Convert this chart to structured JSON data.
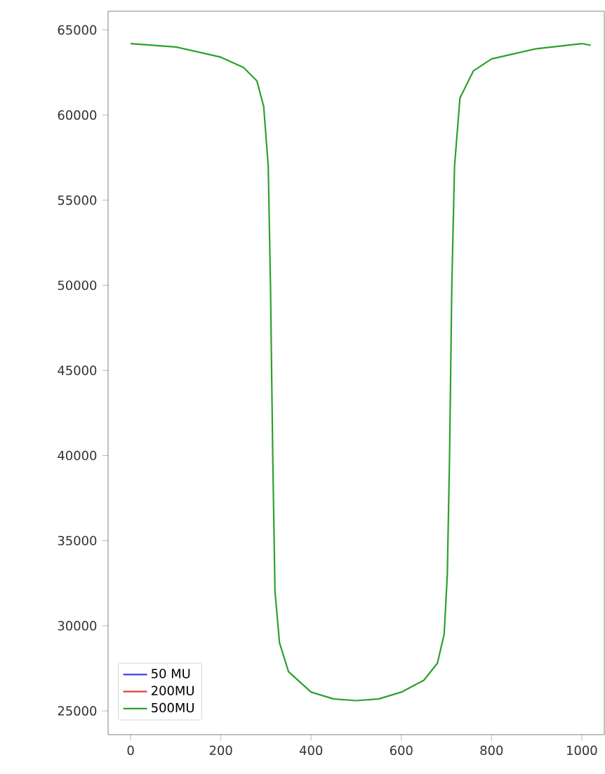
{
  "chart_data": {
    "type": "line",
    "x": [
      0,
      100,
      200,
      250,
      280,
      295,
      305,
      310,
      315,
      320,
      330,
      350,
      400,
      450,
      500,
      550,
      600,
      650,
      680,
      695,
      702,
      707,
      712,
      718,
      730,
      760,
      800,
      900,
      1000,
      1020
    ],
    "series": [
      {
        "name": "50 MU",
        "color": "#4040e0",
        "values": [
          null,
          null,
          null,
          null,
          null,
          null,
          null,
          null,
          null,
          null,
          null,
          null,
          null,
          null,
          null,
          null,
          null,
          null,
          null,
          null,
          null,
          null,
          null,
          null,
          null,
          null,
          null,
          null,
          null,
          null
        ]
      },
      {
        "name": "200MU",
        "color": "#e04040",
        "values": [
          null,
          null,
          null,
          null,
          null,
          null,
          null,
          null,
          null,
          null,
          null,
          null,
          null,
          null,
          null,
          null,
          null,
          null,
          null,
          null,
          null,
          null,
          null,
          null,
          null,
          null,
          null,
          null,
          null,
          null
        ]
      },
      {
        "name": "500MU",
        "color": "#2ca02c",
        "values": [
          64200,
          64000,
          63400,
          62800,
          62000,
          60500,
          57000,
          50000,
          40000,
          32000,
          29000,
          27300,
          26100,
          25700,
          25600,
          25700,
          26100,
          26800,
          27800,
          29500,
          33000,
          40000,
          50000,
          57000,
          61000,
          62600,
          63300,
          63900,
          64200,
          64100
        ]
      }
    ],
    "xlim": [
      -50,
      1050
    ],
    "ylim": [
      23600,
      66100
    ],
    "xticks": [
      0,
      200,
      400,
      600,
      800,
      1000
    ],
    "yticks": [
      25000,
      30000,
      35000,
      40000,
      45000,
      50000,
      55000,
      60000,
      65000
    ],
    "legend": "bottom left"
  }
}
